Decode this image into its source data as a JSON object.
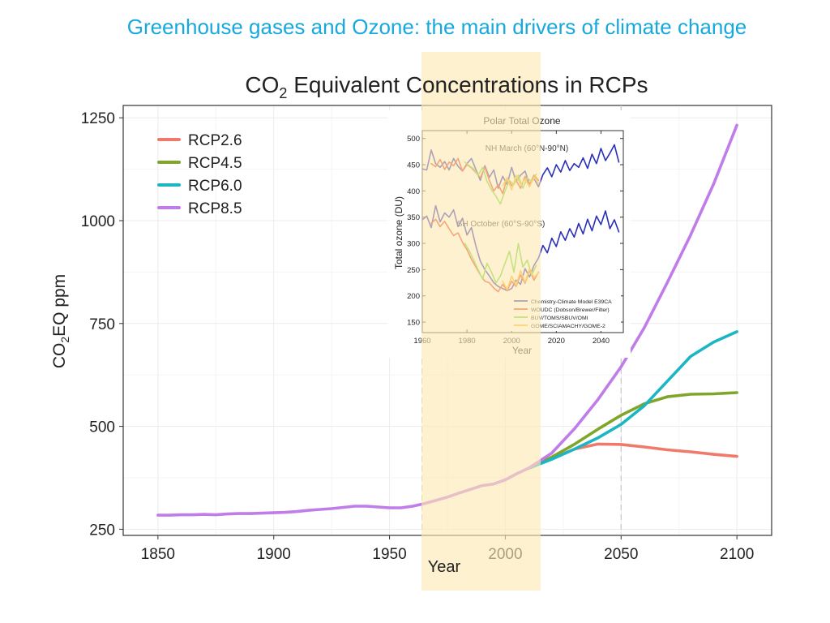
{
  "slide": {
    "title": "Greenhouse gases and Ozone: the main drivers of climate change"
  },
  "colors": {
    "title": "#17a9de",
    "highlight": "#fde8b3",
    "rcp26": "#ef7a6a",
    "rcp45": "#7fa62a",
    "rcp60": "#1ab6c3",
    "rcp85": "#c07ce8"
  },
  "chart_data": [
    {
      "type": "line",
      "title_main": "CO",
      "title_sub": "2",
      "title_rest": " Equivalent Concentrations in RCPs",
      "ylabel_main": "CO",
      "ylabel_sub": "2",
      "ylabel_rest": "EQ ppm",
      "xlabel": "Year",
      "xlim": [
        1835,
        2115
      ],
      "ylim": [
        235,
        1280
      ],
      "xticks": [
        1850,
        1900,
        1950,
        2000,
        2050,
        2100
      ],
      "yticks": [
        250,
        500,
        750,
        1000,
        1250
      ],
      "highlight_range": [
        1964,
        2014
      ],
      "dashed_years": [
        1964,
        2050
      ],
      "legend_position": "top-left",
      "historical": {
        "x": [
          1850,
          1855,
          1860,
          1865,
          1870,
          1875,
          1880,
          1885,
          1890,
          1895,
          1900,
          1905,
          1910,
          1915,
          1920,
          1925,
          1930,
          1935,
          1940,
          1945,
          1950,
          1955,
          1960,
          1965,
          1970,
          1975,
          1980,
          1985,
          1990,
          1995,
          2000,
          2005,
          2010
        ],
        "y": [
          284,
          284,
          285,
          285,
          286,
          285,
          287,
          288,
          288,
          289,
          290,
          291,
          293,
          296,
          298,
          300,
          303,
          306,
          306,
          304,
          302,
          302,
          306,
          312,
          320,
          328,
          338,
          347,
          356,
          360,
          370,
          385,
          398
        ]
      },
      "series": [
        {
          "name": "RCP2.6",
          "x": [
            2010,
            2020,
            2030,
            2040,
            2050,
            2060,
            2070,
            2080,
            2090,
            2100
          ],
          "y": [
            398,
            422,
            445,
            457,
            456,
            450,
            443,
            438,
            432,
            427
          ]
        },
        {
          "name": "RCP4.5",
          "x": [
            2010,
            2020,
            2030,
            2040,
            2050,
            2060,
            2070,
            2080,
            2090,
            2100
          ],
          "y": [
            398,
            425,
            457,
            493,
            527,
            555,
            572,
            578,
            579,
            582
          ]
        },
        {
          "name": "RCP6.0",
          "x": [
            2010,
            2020,
            2030,
            2040,
            2050,
            2060,
            2070,
            2080,
            2090,
            2100
          ],
          "y": [
            398,
            420,
            445,
            472,
            505,
            550,
            610,
            670,
            705,
            730
          ]
        },
        {
          "name": "RCP8.5",
          "x": [
            2010,
            2020,
            2030,
            2040,
            2050,
            2060,
            2070,
            2080,
            2090,
            2100
          ],
          "y": [
            398,
            435,
            495,
            565,
            645,
            740,
            850,
            965,
            1090,
            1232
          ]
        }
      ]
    },
    {
      "type": "line",
      "title": "Polar Total Ozone",
      "ylabel": "Total ozone (DU)",
      "xlabel": "Year",
      "xlim": [
        1960,
        2050
      ],
      "ylim": [
        130,
        515
      ],
      "xticks": [
        1960,
        1980,
        2000,
        2020,
        2040
      ],
      "yticks": [
        150,
        200,
        250,
        300,
        350,
        400,
        450,
        500
      ],
      "annotations": [
        "NH March (60°N-90°N)",
        "SH October (60°S-90°S)"
      ],
      "legend": [
        "Chemistry-Climate Model E39CA",
        "WOUDC (Dobson/Brewer/Filter)",
        "BUV/TOMS/SBUV/OMI",
        "GOME/SCIAMACHY/GOME-2"
      ],
      "series": [
        {
          "name": "Chemistry-Climate Model E39CA",
          "region": "NH",
          "color": "#2a2fb8",
          "x": [
            1960,
            1962,
            1964,
            1966,
            1968,
            1970,
            1972,
            1974,
            1976,
            1978,
            1980,
            1982,
            1984,
            1986,
            1988,
            1990,
            1992,
            1994,
            1996,
            1998,
            2000,
            2002,
            2004,
            2006,
            2008,
            2010,
            2012,
            2014,
            2016,
            2018,
            2020,
            2022,
            2024,
            2026,
            2028,
            2030,
            2032,
            2034,
            2036,
            2038,
            2040,
            2042,
            2044,
            2046,
            2048
          ],
          "y": [
            442,
            440,
            478,
            452,
            445,
            456,
            440,
            462,
            447,
            438,
            452,
            462,
            441,
            420,
            448,
            426,
            440,
            405,
            428,
            412,
            445,
            418,
            430,
            438,
            412,
            424,
            408,
            431,
            444,
            427,
            450,
            436,
            458,
            439,
            452,
            445,
            463,
            443,
            470,
            452,
            481,
            458,
            472,
            488,
            455
          ]
        },
        {
          "name": "Chemistry-Climate Model E39CA",
          "region": "SH",
          "color": "#2a2fb8",
          "x": [
            1960,
            1962,
            1964,
            1966,
            1968,
            1970,
            1972,
            1974,
            1976,
            1978,
            1980,
            1982,
            1984,
            1986,
            1988,
            1990,
            1992,
            1994,
            1996,
            1998,
            2000,
            2002,
            2004,
            2006,
            2008,
            2010,
            2012,
            2014,
            2016,
            2018,
            2020,
            2022,
            2024,
            2026,
            2028,
            2030,
            2032,
            2034,
            2036,
            2038,
            2040,
            2042,
            2044,
            2046,
            2048
          ],
          "y": [
            345,
            352,
            330,
            372,
            341,
            358,
            350,
            364,
            332,
            348,
            316,
            330,
            295,
            266,
            250,
            238,
            225,
            218,
            214,
            210,
            214,
            230,
            222,
            252,
            236,
            258,
            272,
            296,
            282,
            310,
            294,
            322,
            306,
            328,
            312,
            338,
            318,
            346,
            324,
            352,
            336,
            362,
            328,
            345,
            322
          ]
        },
        {
          "name": "WOUDC (Dobson/Brewer/Filter)",
          "region": "NH",
          "color": "#e83a1e",
          "x": [
            1964,
            1966,
            1968,
            1970,
            1972,
            1974,
            1976,
            1978,
            1980,
            1982,
            1984,
            1986,
            1988,
            1990,
            1992,
            1994,
            1996,
            1998,
            2000,
            2002,
            2004,
            2006,
            2008,
            2010,
            2012
          ],
          "y": [
            452,
            446,
            460,
            441,
            455,
            448,
            462,
            438,
            450,
            444,
            435,
            425,
            445,
            420,
            400,
            412,
            395,
            425,
            410,
            420,
            405,
            428,
            412,
            430,
            420
          ]
        },
        {
          "name": "WOUDC (Dobson/Brewer/Filter)",
          "region": "SH",
          "color": "#e83a1e",
          "x": [
            1964,
            1966,
            1968,
            1970,
            1972,
            1974,
            1976,
            1978,
            1980,
            1982,
            1984,
            1986,
            1988,
            1990,
            1992,
            1994,
            1996,
            1998,
            2000,
            2002,
            2004,
            2006,
            2008,
            2010,
            2012
          ],
          "y": [
            338,
            346,
            332,
            342,
            328,
            315,
            320,
            302,
            288,
            270,
            255,
            240,
            228,
            225,
            215,
            208,
            222,
            210,
            228,
            218,
            240,
            224,
            248,
            230,
            245
          ]
        },
        {
          "name": "BUV/TOMS/SBUV/OMI",
          "region": "NH",
          "color": "#6bd62e",
          "x": [
            1979,
            1981,
            1983,
            1985,
            1987,
            1989,
            1991,
            1993,
            1995,
            1997,
            1999,
            2001,
            2003,
            2005,
            2007,
            2009,
            2011
          ],
          "y": [
            455,
            448,
            442,
            430,
            445,
            418,
            402,
            390,
            375,
            400,
            420,
            412,
            430,
            405,
            425,
            418,
            432
          ]
        },
        {
          "name": "BUV/TOMS/SBUV/OMI",
          "region": "SH",
          "color": "#6bd62e",
          "x": [
            1979,
            1981,
            1983,
            1985,
            1987,
            1989,
            1991,
            1993,
            1995,
            1997,
            1999,
            2001,
            2003,
            2005,
            2007,
            2009,
            2011
          ],
          "y": [
            300,
            286,
            268,
            250,
            232,
            262,
            245,
            225,
            238,
            262,
            285,
            245,
            300,
            255,
            268,
            240,
            258
          ]
        },
        {
          "name": "GOME/SCIAMACHY/GOME-2",
          "region": "NH",
          "color": "#f2b51a",
          "x": [
            1996,
            1998,
            2000,
            2002,
            2004,
            2006,
            2008,
            2010,
            2012
          ],
          "y": [
            410,
            425,
            402,
            430,
            412,
            422,
            408,
            426,
            415
          ]
        },
        {
          "name": "GOME/SCIAMACHY/GOME-2",
          "region": "SH",
          "color": "#f2b51a",
          "x": [
            1996,
            1998,
            2000,
            2002,
            2004,
            2006,
            2008,
            2010,
            2012
          ],
          "y": [
            228,
            212,
            238,
            220,
            248,
            226,
            252,
            235,
            244
          ]
        }
      ]
    }
  ]
}
